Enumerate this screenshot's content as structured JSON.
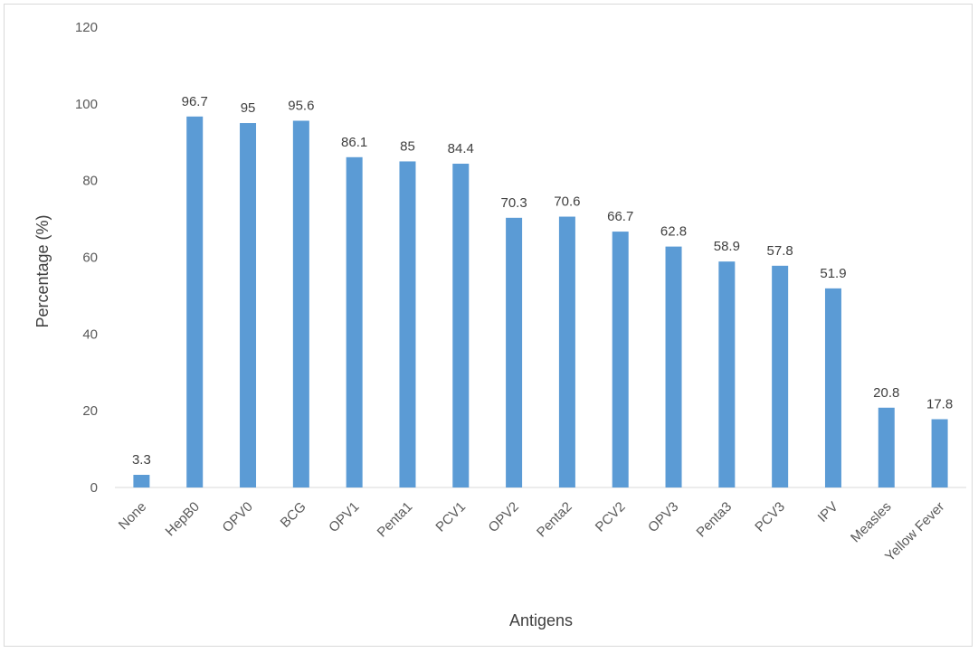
{
  "chart_data": {
    "type": "bar",
    "xlabel": "Antigens",
    "ylabel": "Percentage (%)",
    "ylim": [
      0,
      120
    ],
    "yticks": [
      0,
      20,
      40,
      60,
      80,
      100,
      120
    ],
    "grid": false,
    "legend": "none",
    "bar_color": "#5b9bd5",
    "categories": [
      "None",
      "HepB0",
      "OPV0",
      "BCG",
      "OPV1",
      "Penta1",
      "PCV1",
      "OPV2",
      "Penta2",
      "PCV2",
      "OPV3",
      "Penta3",
      "PCV3",
      "IPV",
      "Measles",
      "Yellow Fever"
    ],
    "values": [
      3.3,
      96.7,
      95,
      95.6,
      86.1,
      85,
      84.4,
      70.3,
      70.6,
      66.7,
      62.8,
      58.9,
      57.8,
      51.9,
      20.8,
      17.8
    ],
    "value_labels": [
      "3.3",
      "96.7",
      "95",
      "95.6",
      "86.1",
      "85",
      "84.4",
      "70.3",
      "70.6",
      "66.7",
      "62.8",
      "58.9",
      "57.8",
      "51.9",
      "20.8",
      "17.8"
    ]
  }
}
